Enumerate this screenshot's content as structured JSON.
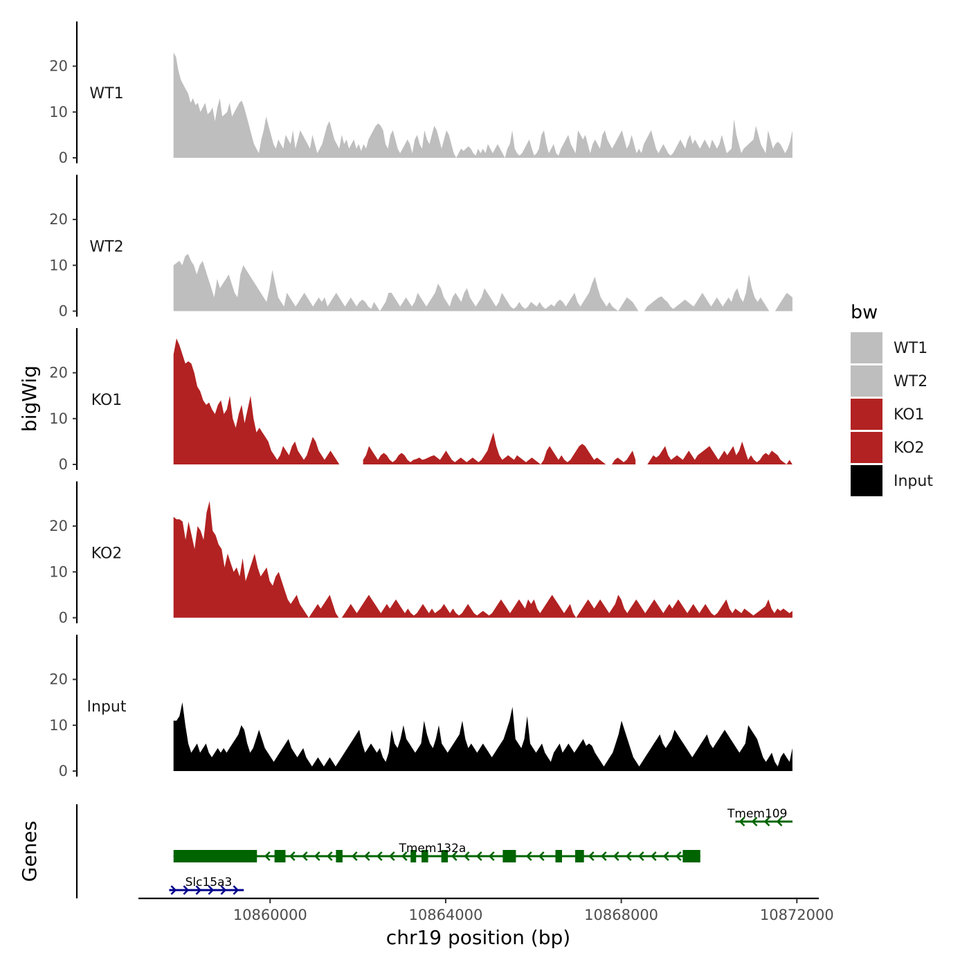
{
  "chart_data": {
    "type": "area",
    "y_axis_title": "bigWig",
    "x_axis_title": "chr19 position (bp)",
    "genes_axis_title": "Genes",
    "x_range": [
      10857000,
      10872500
    ],
    "data_range": [
      10857800,
      10871900
    ],
    "x_ticks": [
      10860000,
      10864000,
      10868000,
      10872000
    ],
    "x_tick_labels": [
      "10860000",
      "10864000",
      "10868000",
      "10872000"
    ],
    "y_range": [
      0,
      29
    ],
    "y_ticks": [
      0,
      10,
      20
    ],
    "y_tick_labels": [
      "0",
      "10",
      "20"
    ],
    "colors": {
      "WT1": "#bebebe",
      "WT2": "#bebebe",
      "KO1": "#b22222",
      "KO2": "#b22222",
      "Input": "#000000",
      "gene_minus": "#006400",
      "gene_plus": "#00008b"
    },
    "tracks": [
      {
        "name": "WT1",
        "color": "#bebebe",
        "values": [
          23,
          22,
          19,
          17,
          16,
          15,
          14,
          12,
          13,
          11.5,
          12,
          10,
          11,
          12,
          9.5,
          10,
          11,
          8,
          11,
          13,
          9,
          9.5,
          10,
          12,
          9,
          10,
          11,
          12,
          12.5,
          11,
          9,
          7,
          5,
          3,
          2,
          1,
          4,
          6,
          9,
          7,
          5,
          3,
          2,
          4,
          3,
          2,
          5,
          4,
          3,
          6,
          2,
          4,
          6,
          5,
          4,
          3,
          2,
          5,
          3,
          1,
          2,
          3,
          5,
          7,
          8,
          6,
          4,
          3,
          2,
          5,
          3,
          4,
          2,
          3,
          4,
          2,
          3,
          1.5,
          3,
          2,
          4,
          5,
          6,
          7,
          7.5,
          7,
          6,
          3,
          2,
          5,
          6,
          4,
          2,
          1,
          2,
          3,
          4,
          3,
          1,
          4,
          5,
          3,
          2,
          6,
          4,
          3,
          5,
          7,
          6,
          4,
          2,
          4,
          6,
          5,
          3,
          1,
          0,
          1,
          2,
          1.5,
          2,
          2.5,
          2,
          1,
          0.5,
          2,
          1,
          2,
          1,
          3,
          2,
          1,
          2,
          3,
          2,
          1,
          0,
          2,
          3,
          6,
          2,
          1,
          0.5,
          1,
          2,
          3,
          4,
          2,
          0.5,
          1,
          2,
          5,
          6,
          3,
          1,
          2,
          3,
          1,
          0.5,
          2,
          3,
          4,
          5,
          3,
          2,
          1,
          6,
          5,
          4,
          5,
          3,
          1,
          3,
          4,
          3,
          2,
          5,
          6,
          4,
          3,
          2,
          3,
          4,
          5,
          6,
          4,
          2,
          3,
          5,
          3,
          1,
          2,
          1,
          3,
          4,
          5,
          6,
          4,
          2,
          1,
          2,
          3,
          2,
          1,
          0.5,
          1,
          2,
          3,
          4,
          3,
          2,
          4,
          5,
          3,
          4,
          3,
          2,
          3,
          4,
          3,
          2,
          4,
          3,
          2,
          3,
          5,
          3,
          1,
          1.5,
          2,
          8.5,
          5,
          3,
          1,
          2,
          2.5,
          3,
          3.5,
          4,
          7,
          5,
          3,
          2,
          1,
          6,
          4,
          2,
          3,
          3.5,
          3,
          2,
          1,
          2,
          3.5,
          6
        ]
      },
      {
        "name": "WT2",
        "color": "#bebebe",
        "values": [
          10,
          10.5,
          11,
          10,
          12,
          12.5,
          11,
          10,
          8,
          10,
          11,
          9,
          7,
          5,
          3,
          7,
          5,
          6,
          7,
          8,
          6,
          4,
          3,
          8,
          10,
          9,
          8,
          7,
          6,
          5,
          4,
          3,
          2,
          5,
          9,
          6,
          3,
          2,
          1,
          4,
          3,
          2,
          1,
          2,
          3,
          4,
          3,
          2,
          1,
          2,
          3,
          2,
          3,
          1,
          2,
          3,
          4,
          3,
          2,
          1,
          2,
          3,
          2,
          1,
          2,
          2.5,
          2,
          1,
          0.5,
          2,
          1,
          0,
          1,
          2,
          4,
          4,
          3,
          2,
          1,
          2,
          3,
          2,
          1,
          2,
          4,
          3,
          2,
          1,
          2,
          3,
          4,
          6,
          5,
          3,
          2,
          1,
          3,
          4,
          3,
          2,
          4,
          5,
          3,
          2,
          1,
          2,
          3,
          5,
          4,
          3,
          2,
          1,
          2,
          4,
          3,
          2,
          1,
          0.5,
          1,
          2,
          1,
          0.5,
          1,
          2,
          1.5,
          1,
          2,
          1,
          0.5,
          1,
          1.5,
          1,
          2,
          2.5,
          2,
          1,
          2,
          3,
          4,
          2,
          1,
          2,
          3,
          4,
          6,
          7.5,
          5,
          3,
          2,
          1,
          2,
          1,
          0.5,
          0,
          1,
          2,
          3,
          2.5,
          2,
          1,
          0,
          0,
          0,
          1,
          1.5,
          2,
          2.5,
          3,
          3.2,
          2.5,
          2,
          1,
          0.5,
          1,
          1.5,
          2,
          2.5,
          2,
          1.5,
          1,
          2,
          3,
          4,
          3,
          2,
          1,
          2,
          3,
          2,
          1,
          2,
          3,
          2,
          4,
          5,
          3,
          2,
          4,
          8,
          5,
          3,
          2,
          3,
          2,
          1,
          0,
          0,
          0,
          1,
          2,
          3,
          4,
          3.5,
          3
        ]
      },
      {
        "name": "KO1",
        "color": "#b22222",
        "values": [
          24,
          27.5,
          26,
          24,
          22,
          22.5,
          22,
          20,
          17,
          16,
          14,
          13,
          13.5,
          12,
          11,
          13,
          14,
          11,
          12,
          15,
          10,
          8,
          11,
          13,
          9,
          12,
          15,
          10,
          7,
          8,
          7,
          6,
          5,
          3,
          2,
          1,
          2,
          4,
          3,
          2,
          4,
          5,
          3,
          2,
          1,
          2,
          4,
          6,
          5,
          3,
          2,
          1,
          2,
          3,
          2,
          1,
          0,
          null,
          null,
          null,
          null,
          null,
          null,
          null,
          1,
          2,
          4,
          3,
          2,
          1,
          2,
          2.5,
          2,
          1,
          0.5,
          1,
          2,
          2.5,
          2,
          1,
          0.5,
          1,
          1.2,
          1.5,
          1,
          1.2,
          1.5,
          1.8,
          2,
          1.5,
          1,
          2,
          3,
          2,
          1,
          0.5,
          1,
          1.5,
          1,
          0.5,
          1,
          1.5,
          1,
          0.5,
          1,
          2,
          3,
          5,
          7,
          4,
          2,
          1,
          1.5,
          2,
          1.5,
          1,
          2,
          1.5,
          1,
          0.5,
          1,
          1.5,
          1,
          0.5,
          0,
          1,
          3,
          4,
          3,
          2,
          1,
          2,
          1,
          0.5,
          1,
          2,
          3,
          4,
          4.5,
          4,
          3,
          2,
          1,
          1.5,
          1,
          0.5,
          0,
          null,
          0,
          1,
          1.5,
          1,
          0.5,
          1,
          2,
          3,
          1,
          null,
          null,
          null,
          0,
          1,
          2,
          1.5,
          2,
          3,
          4,
          2,
          1,
          1.5,
          2,
          1.5,
          1,
          2,
          3,
          2,
          1,
          2,
          2.5,
          3,
          3.5,
          4,
          3,
          2,
          1,
          2,
          3,
          2,
          3,
          4,
          2,
          3,
          5,
          3,
          1,
          2,
          1,
          0.5,
          1,
          2,
          2.5,
          2,
          3,
          2.5,
          2,
          1,
          0.5,
          0,
          1,
          0
        ]
      },
      {
        "name": "KO2",
        "color": "#b22222",
        "values": [
          22,
          21.5,
          21.5,
          21,
          17,
          21,
          18,
          15,
          20,
          19,
          17,
          23,
          25.5,
          19,
          18,
          16,
          15,
          11,
          14,
          12,
          10,
          11,
          9,
          13,
          8,
          10,
          12,
          14,
          11,
          9,
          10,
          11,
          8,
          7,
          9,
          10,
          8,
          6,
          4,
          3,
          4,
          5,
          3,
          2,
          1,
          0,
          1,
          2,
          3,
          2,
          3,
          4,
          5,
          3,
          1,
          0,
          0,
          1,
          2,
          3,
          2,
          1,
          2,
          3,
          4,
          5,
          4,
          3,
          2,
          1,
          2,
          3,
          2,
          3,
          4,
          3,
          2,
          1,
          2,
          1,
          0.5,
          1,
          2,
          3,
          2,
          1,
          2,
          1,
          1.5,
          2,
          3,
          2,
          1,
          2,
          1,
          0.5,
          1,
          2,
          3,
          2,
          1,
          0.5,
          1,
          1.5,
          1,
          0.5,
          1,
          2,
          3,
          4,
          3,
          2,
          1,
          2,
          3,
          4,
          3,
          2,
          4,
          3,
          4,
          2,
          1,
          2,
          3,
          4,
          5,
          4,
          3,
          2,
          1,
          2,
          3,
          1,
          0,
          1,
          2,
          3,
          4,
          3,
          2,
          3,
          4,
          3,
          2,
          1,
          2,
          3,
          5,
          4,
          2,
          1,
          2,
          3,
          4,
          3,
          2,
          1,
          2,
          3,
          4,
          3,
          2,
          1,
          2,
          3,
          2,
          3,
          4,
          3,
          2,
          1,
          2,
          3,
          2,
          1,
          2,
          3,
          2,
          1,
          0.5,
          1,
          2,
          3,
          4,
          2,
          1,
          2,
          1.5,
          1,
          2,
          1.5,
          1,
          0.5,
          1,
          1.5,
          2,
          2.5,
          4,
          2,
          1,
          2,
          1.5,
          2,
          1.5,
          1,
          1.5
        ]
      },
      {
        "name": "Input",
        "color": "#000000",
        "values": [
          11,
          11,
          12,
          15,
          10,
          6,
          4,
          5,
          6,
          4,
          5,
          6,
          4,
          3,
          4,
          5,
          4,
          5,
          4,
          5,
          6,
          7,
          8,
          10,
          9,
          6,
          4,
          5,
          7,
          9,
          7,
          5,
          4,
          3,
          2,
          3,
          4,
          5,
          6,
          7,
          5,
          4,
          3,
          4,
          5,
          3,
          2,
          1,
          2,
          3,
          2,
          1,
          2,
          3,
          2,
          1,
          2,
          3,
          4,
          5,
          6,
          7,
          8,
          9,
          6,
          4,
          5,
          6,
          5,
          4,
          5,
          3,
          2,
          4,
          9,
          6,
          5,
          7,
          10,
          7,
          6,
          5,
          4,
          5,
          6,
          11,
          8,
          6,
          5,
          7,
          10,
          6,
          5,
          4,
          5,
          6,
          7,
          8,
          11,
          7,
          5,
          6,
          5,
          4,
          5,
          6,
          5,
          4,
          3,
          4,
          5,
          6,
          7,
          9,
          11,
          14,
          7,
          6,
          5,
          7,
          12,
          6,
          5,
          4,
          5,
          6,
          4,
          3,
          2,
          4,
          5,
          6,
          4,
          5,
          6,
          5,
          4,
          5,
          6,
          7,
          5.5,
          6,
          5.5,
          4,
          3,
          2,
          1,
          2,
          3,
          4,
          6,
          8,
          11,
          9,
          7,
          5,
          3,
          2,
          1,
          2,
          3,
          4,
          5,
          6,
          7,
          8,
          6,
          5,
          6,
          7,
          9,
          8,
          7,
          6,
          5,
          4,
          3,
          4,
          5,
          6,
          7,
          8,
          6,
          5,
          6,
          7,
          8,
          9,
          8,
          7,
          6,
          5,
          4,
          5,
          6,
          10,
          9,
          8,
          7,
          5,
          3,
          2,
          3,
          4,
          2,
          1,
          3,
          4,
          3,
          2,
          5
        ]
      }
    ],
    "genes": [
      {
        "name": "Tmem109",
        "strand": "-",
        "color": "#006400",
        "row": 0,
        "start": 10870600,
        "end": 10871900,
        "exons": [],
        "label_x": 10871100
      },
      {
        "name": "Tmem132a",
        "strand": "-",
        "color": "#006400",
        "row": 1,
        "start": 10857800,
        "end": 10869800,
        "exons": [
          [
            10857800,
            10859700
          ],
          [
            10860100,
            10860350
          ],
          [
            10861500,
            10861650
          ],
          [
            10863200,
            10863300
          ],
          [
            10863450,
            10863600
          ],
          [
            10863900,
            10864050
          ],
          [
            10865300,
            10865600
          ],
          [
            10866500,
            10866650
          ],
          [
            10866950,
            10867150
          ],
          [
            10869400,
            10869800
          ]
        ],
        "label_x": 10863700
      },
      {
        "name": "Slc15a3",
        "strand": "+",
        "color": "#00008b",
        "row": 2,
        "start": 10857700,
        "end": 10859400,
        "exons": [],
        "label_x": 10858600
      }
    ],
    "legend": {
      "title": "bw",
      "items": [
        {
          "label": "WT1",
          "color": "#bebebe"
        },
        {
          "label": "WT2",
          "color": "#bebebe"
        },
        {
          "label": "KO1",
          "color": "#b22222"
        },
        {
          "label": "KO2",
          "color": "#b22222"
        },
        {
          "label": "Input",
          "color": "#000000"
        }
      ]
    }
  }
}
